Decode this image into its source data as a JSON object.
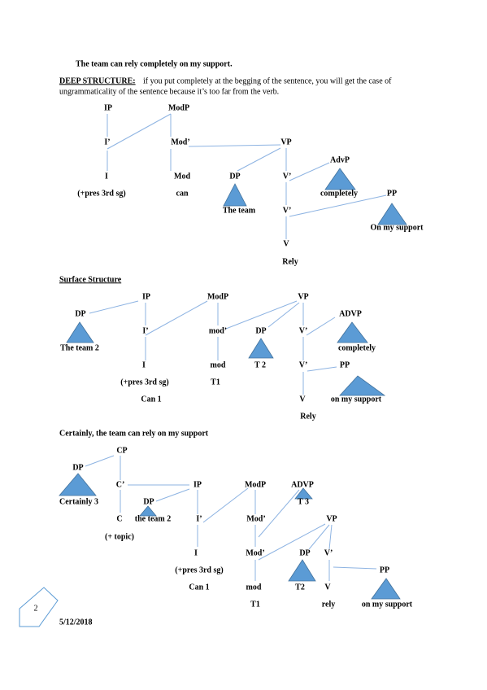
{
  "header": {
    "title": "The team can rely completely on my support."
  },
  "deep_structure": {
    "label": "DEEP STRUCTURE:",
    "text": [
      "if you put completely at the begging of the sentence, you will get the case of",
      "ungrammaticality of the sentence because it’s too far from the verb."
    ],
    "tree": {
      "nodes": [
        "IP",
        "ModP",
        "I’",
        "Mod’",
        "VP",
        "AdvP",
        "I",
        "Mod",
        "DP",
        "V’",
        "completely",
        "PP",
        "(+pres 3rd sg)",
        "can",
        "V’",
        "The team",
        "On my support",
        "V",
        "Rely"
      ]
    }
  },
  "surface_structure": {
    "label": "Surface Structure",
    "tree": {
      "nodes": [
        "IP",
        "ModP",
        "VP",
        "DP",
        "ADVP",
        "I’",
        "mod’",
        "DP",
        "V’",
        "The team 2",
        "completely",
        "I",
        "mod",
        "T 2",
        "V’",
        "PP",
        "(+pres 3rd sg)",
        "T1",
        "Can 1",
        "V",
        "on my support",
        "Rely"
      ]
    }
  },
  "example": {
    "sentence": "Certainly, the team can rely on my support",
    "tree": {
      "nodes": [
        "CP",
        "DP",
        "C’",
        "IP",
        "ModP",
        "ADVP",
        "DP",
        "Certainly 3",
        "T 3",
        "C",
        "the team 2",
        "I’",
        "Mod’",
        "VP",
        "(+ topic)",
        "I",
        "Mod’",
        "DP",
        "V’",
        "PP",
        "(+pres 3rd sg)",
        "Can 1",
        "mod",
        "T2",
        "V",
        "T1",
        "rely",
        "on my support"
      ]
    }
  },
  "footer": {
    "page": "2",
    "date": "5/12/2018"
  }
}
